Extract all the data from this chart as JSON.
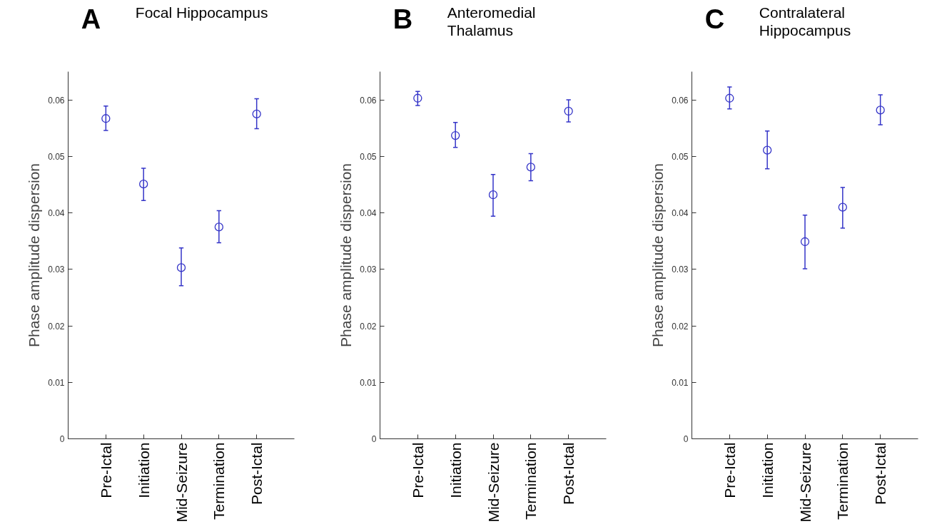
{
  "chart_data": [
    {
      "type": "scatter",
      "title": "Focal Hippocampus",
      "annotations": [
        "A"
      ],
      "ylabel": "Phase amplitude dispersion",
      "categories": [
        "Pre-Ictal",
        "Initiation",
        "Mid-Seizure",
        "Termination",
        "Post-Ictal"
      ],
      "series": [
        {
          "color": "#3535c8",
          "values": [
            0.0567,
            0.0451,
            0.0303,
            0.0375,
            0.0575
          ],
          "errors": [
            [
              0.0546,
              0.0589
            ],
            [
              0.0422,
              0.0479
            ],
            [
              0.0271,
              0.0338
            ],
            [
              0.0347,
              0.0404
            ],
            [
              0.0549,
              0.0602
            ]
          ]
        }
      ],
      "ylim": [
        0,
        0.065
      ],
      "yticks": [
        0,
        0.01,
        0.02,
        0.03,
        0.04,
        0.05,
        0.06
      ],
      "marker": "circle",
      "grid": false
    },
    {
      "type": "scatter",
      "title": "Anteromedial\nThalamus",
      "annotations": [
        "B"
      ],
      "ylabel": "Phase amplitude dispersion",
      "categories": [
        "Pre-Ictal",
        "Initiation",
        "Mid-Seizure",
        "Termination",
        "Post-Ictal"
      ],
      "series": [
        {
          "color": "#3535c8",
          "values": [
            0.0603,
            0.0537,
            0.0432,
            0.0481,
            0.058
          ],
          "errors": [
            [
              0.059,
              0.0615
            ],
            [
              0.0516,
              0.056
            ],
            [
              0.0394,
              0.0468
            ],
            [
              0.0457,
              0.0505
            ],
            [
              0.0561,
              0.06
            ]
          ]
        }
      ],
      "ylim": [
        0,
        0.065
      ],
      "yticks": [
        0,
        0.01,
        0.02,
        0.03,
        0.04,
        0.05,
        0.06
      ],
      "marker": "circle",
      "grid": false
    },
    {
      "type": "scatter",
      "title": "Contralateral\nHippocampus",
      "annotations": [
        "C"
      ],
      "ylabel": "Phase amplitude dispersion",
      "categories": [
        "Pre-Ictal",
        "Initiation",
        "Mid-Seizure",
        "Termination",
        "Post-Ictal"
      ],
      "series": [
        {
          "color": "#3535c8",
          "values": [
            0.0603,
            0.0511,
            0.0349,
            0.041,
            0.0582
          ],
          "errors": [
            [
              0.0584,
              0.0623
            ],
            [
              0.0478,
              0.0545
            ],
            [
              0.0301,
              0.0396
            ],
            [
              0.0373,
              0.0445
            ],
            [
              0.0556,
              0.0609
            ]
          ]
        }
      ],
      "ylim": [
        0,
        0.065
      ],
      "yticks": [
        0,
        0.01,
        0.02,
        0.03,
        0.04,
        0.05,
        0.06
      ],
      "marker": "circle",
      "grid": false
    }
  ]
}
